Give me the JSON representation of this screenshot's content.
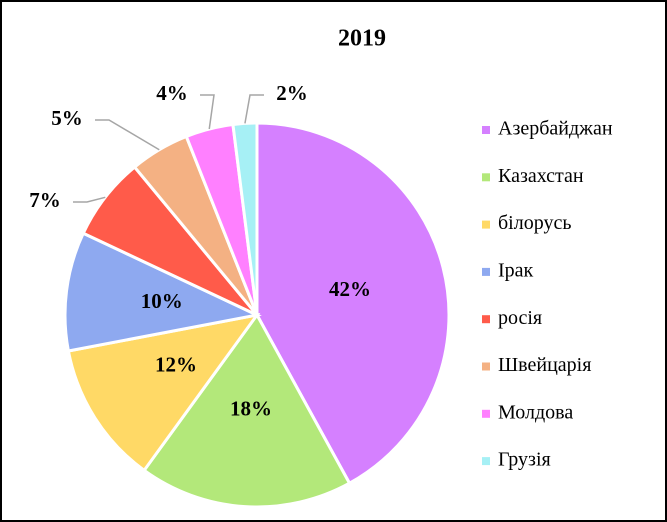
{
  "chart_data": {
    "type": "pie",
    "title": "2019",
    "categories": [
      "Азербайджан",
      "Казахстан",
      "білорусь",
      "Ірак",
      "росія",
      "Швейцарія",
      "Молдова",
      "Грузія"
    ],
    "values": [
      42,
      18,
      12,
      10,
      7,
      5,
      4,
      2
    ],
    "value_labels": [
      "42%",
      "18%",
      "12%",
      "10%",
      "7%",
      "5%",
      "4%",
      "2%"
    ],
    "colors": [
      "#d580ff",
      "#b3e87a",
      "#ffd966",
      "#8ea9f0",
      "#ff5b4a",
      "#f4b183",
      "#ff80ff",
      "#a6f0f5"
    ],
    "legend": "right"
  }
}
